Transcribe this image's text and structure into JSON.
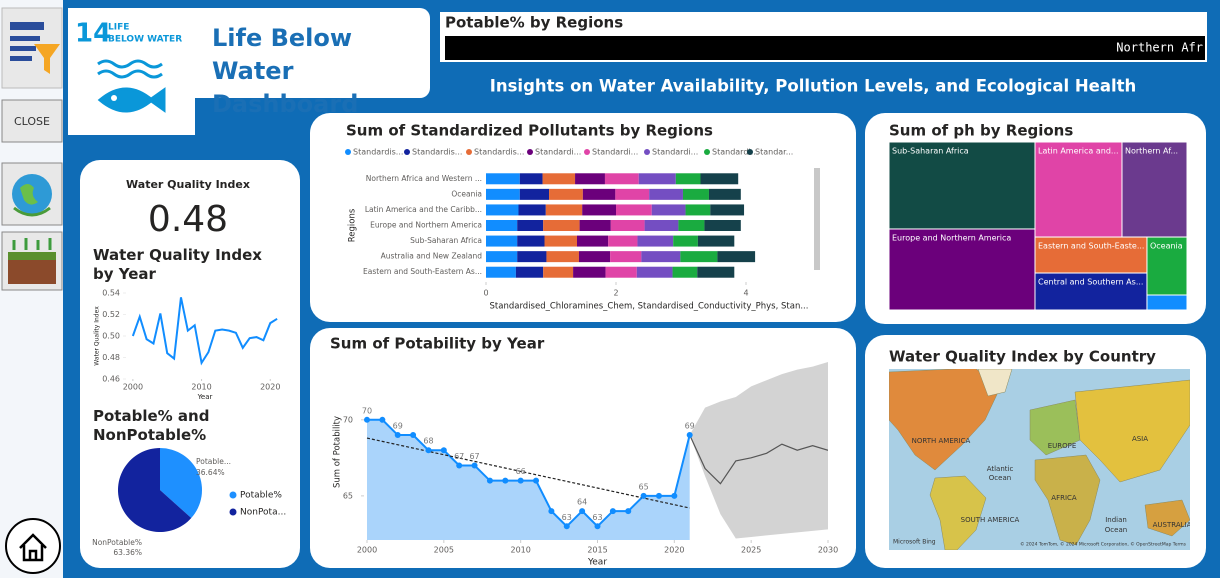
{
  "sidebar": {
    "close_button": "CLOSE"
  },
  "logo": {
    "number": "14",
    "line1": "LIFE",
    "line2": "BELOW WATER"
  },
  "header": {
    "title": "Life Below Water Dashboard",
    "subtitle": "Insights on Water Availability, Pollution Levels, and Ecological Health"
  },
  "ticker": {
    "title": "Potable% by Regions",
    "text": "Northern Afr"
  },
  "kpi": {
    "label": "Water Quality Index",
    "value": 0.48
  },
  "map": {
    "title": "Water Quality Index by Country",
    "labels": [
      "NORTH AMERICA",
      "EUROPE",
      "ASIA",
      "Atlantic",
      "Ocean",
      "AFRICA",
      "SOUTH AMERICA",
      "Indian",
      "Ocean",
      "AUSTRALIA"
    ],
    "provider": "Microsoft Bing",
    "attribution": "© 2024 TomTom, © 2024 Microsoft Corporation, © OpenStreetMap  Terms"
  },
  "chart_data": [
    {
      "type": "line",
      "title": "Water Quality Index by Year",
      "x_label": "Year",
      "y_label": "Water Quality Index",
      "x": [
        2000,
        2001,
        2002,
        2003,
        2004,
        2005,
        2006,
        2007,
        2008,
        2009,
        2010,
        2011,
        2012,
        2013,
        2014,
        2015,
        2016,
        2017,
        2018,
        2019,
        2020,
        2021
      ],
      "values": [
        0.5,
        0.518,
        0.497,
        0.493,
        0.521,
        0.484,
        0.479,
        0.536,
        0.505,
        0.51,
        0.475,
        0.485,
        0.505,
        0.506,
        0.505,
        0.503,
        0.489,
        0.498,
        0.499,
        0.496,
        0.512,
        0.516
      ],
      "color": "#118dff",
      "xlim": [
        1999,
        2022
      ],
      "ylim": [
        0.46,
        0.54
      ],
      "xticks": [
        2000,
        2010,
        2020
      ],
      "yticks": [
        0.46,
        0.48,
        {
          "value": 0.5,
          "label": "0.50"
        },
        0.52,
        0.54
      ]
    },
    {
      "type": "pie",
      "title": "Potable% and NonPotable%",
      "categories": [
        "Potable%",
        "NonPotable%"
      ],
      "values": [
        36.64,
        63.36
      ],
      "value_labels": [
        "36.64%",
        "63.36%"
      ],
      "slice_labels": [
        "Potable...",
        "NonPotable%"
      ],
      "legend_labels": [
        "Potable%",
        "NonPota..."
      ],
      "colors": [
        "#1e90ff",
        "#12239e"
      ]
    },
    {
      "type": "stacked-bar",
      "title": "Sum of Standardized Pollutants by Regions",
      "y_label": "Regions",
      "x_label": "Standardised_Chloramines_Chem, Standardised_Conductivity_Phys, Stan...",
      "categories": [
        "Northern Africa and Western ...",
        "Oceania",
        "Latin America and the Caribb...",
        "Europe and Northern America",
        "Sub-Saharan Africa",
        "Australia and New Zealand",
        "Eastern and South-Eastern As..."
      ],
      "series": [
        {
          "name": "Standardis...",
          "color": "#118dff",
          "values": [
            0.52,
            0.52,
            0.5,
            0.48,
            0.48,
            0.48,
            0.46
          ]
        },
        {
          "name": "Standardis...",
          "color": "#12239e",
          "values": [
            0.35,
            0.45,
            0.42,
            0.4,
            0.42,
            0.45,
            0.42
          ]
        },
        {
          "name": "Standardis...",
          "color": "#e66c37",
          "values": [
            0.5,
            0.52,
            0.56,
            0.56,
            0.5,
            0.5,
            0.46
          ]
        },
        {
          "name": "Standardi...",
          "color": "#6b007b",
          "values": [
            0.46,
            0.5,
            0.52,
            0.48,
            0.48,
            0.48,
            0.5
          ]
        },
        {
          "name": "Standardi...",
          "color": "#e044a7",
          "values": [
            0.52,
            0.52,
            0.55,
            0.52,
            0.45,
            0.48,
            0.48
          ]
        },
        {
          "name": "Standardi...",
          "color": "#744ec2",
          "values": [
            0.57,
            0.52,
            0.52,
            0.52,
            0.55,
            0.6,
            0.55
          ]
        },
        {
          "name": "Standardi...",
          "color": "#1aab40",
          "values": [
            0.38,
            0.4,
            0.38,
            0.4,
            0.38,
            0.57,
            0.38
          ]
        },
        {
          "name": "Standar...",
          "color": "#15414b",
          "values": [
            0.58,
            0.49,
            0.52,
            0.56,
            0.56,
            0.58,
            0.57
          ]
        }
      ],
      "xlim": [
        0,
        5
      ],
      "xticks": [
        0,
        2,
        4
      ]
    },
    {
      "type": "treemap",
      "title": "Sum of ph by Regions",
      "categories": [
        "Sub-Saharan Africa",
        "Europe and Northern America",
        "Latin America and...",
        "Northern Af...",
        "Eastern and South-Easte...",
        "Oceania",
        "Central and Southern As...",
        null
      ],
      "values": [
        1270,
        1183,
        827,
        618,
        403,
        232,
        414,
        60
      ],
      "colors": [
        "#124b45",
        "#6b007b",
        "#e044a7",
        "#6b3a8e",
        "#e66c37",
        "#1aab40",
        "#12239e",
        "#118dff"
      ]
    },
    {
      "type": "line-forecast",
      "title": "Sum of Potability by Year",
      "x_label": "Year",
      "y_label": "Sum of Potability",
      "x": [
        2000,
        2001,
        2002,
        2003,
        2004,
        2005,
        2006,
        2007,
        2008,
        2009,
        2010,
        2011,
        2012,
        2013,
        2014,
        2015,
        2016,
        2017,
        2018,
        2019,
        2020,
        2021
      ],
      "values": [
        70,
        70,
        69,
        69,
        68,
        68,
        67,
        67,
        66,
        66,
        66,
        66,
        64,
        63,
        64,
        63,
        64,
        64,
        65,
        65,
        65,
        69
      ],
      "value_labels": [
        "70",
        null,
        "69",
        null,
        "68",
        null,
        "67",
        "67",
        null,
        null,
        "66",
        null,
        null,
        "63",
        "64",
        "63",
        null,
        null,
        "65",
        null,
        null,
        "69"
      ],
      "color": "#118dff",
      "area_color": "#aad4fb",
      "forecast": {
        "x": [
          2021,
          2022,
          2023,
          2024,
          2025,
          2026,
          2027,
          2028,
          2029,
          2030
        ],
        "values": [
          69,
          66.8,
          65.8,
          67.3,
          67.5,
          67.8,
          68.4,
          68,
          68.3,
          68
        ],
        "lower": [
          69,
          66.3,
          63.8,
          62.2,
          62.3,
          62.4,
          62.5,
          62.6,
          62.7,
          62.8
        ],
        "upper": [
          69,
          70.8,
          71.2,
          71.5,
          72.2,
          72.6,
          73,
          73.3,
          73.5,
          73.8
        ],
        "color": "#555555",
        "band_color": "#d3d3d3"
      },
      "trend": {
        "x": [
          2000,
          2021
        ],
        "values": [
          68.8,
          64.2
        ]
      },
      "xlim": [
        2000,
        2030
      ],
      "ylim": [
        62.1,
        73.8
      ],
      "xticks": [
        2000,
        2005,
        2010,
        2015,
        2020,
        2025,
        2030
      ],
      "yticks": [
        65,
        70
      ]
    }
  ]
}
